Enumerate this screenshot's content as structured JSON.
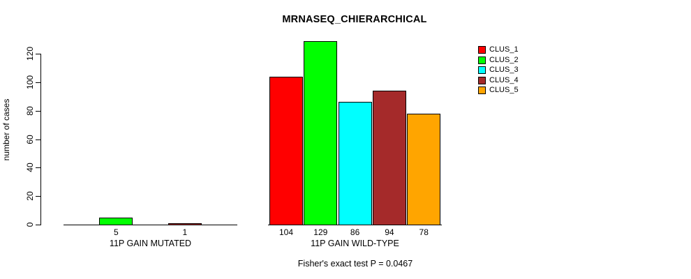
{
  "chart_data": {
    "type": "bar",
    "title": "MRNASEQ_CHIERARCHICAL",
    "ylabel": "number of cases",
    "xlabel": "",
    "ylim": [
      0,
      120
    ],
    "yticks": [
      0,
      20,
      40,
      60,
      80,
      100,
      120
    ],
    "grid": false,
    "legend_position": "topright",
    "background": "#FFFFFF",
    "axis_color": "#000000",
    "categories": [
      "11P GAIN MUTATED",
      "11P GAIN WILD-TYPE"
    ],
    "series": [
      {
        "name": "CLUS_1",
        "color": "#FF0000",
        "values": [
          0,
          104
        ]
      },
      {
        "name": "CLUS_2",
        "color": "#00FF00",
        "values": [
          5,
          129
        ]
      },
      {
        "name": "CLUS_3",
        "color": "#00FFFF",
        "values": [
          0,
          86
        ]
      },
      {
        "name": "CLUS_4",
        "color": "#A52A2A",
        "values": [
          1,
          94
        ]
      },
      {
        "name": "CLUS_5",
        "color": "#FFA500",
        "values": [
          0,
          78
        ]
      }
    ],
    "bar_value_labels": [
      [
        "",
        "5",
        "",
        "1",
        ""
      ],
      [
        "104",
        "129",
        "86",
        "94",
        "78"
      ]
    ],
    "annotation": "Fisher's exact test P = 0.0467"
  }
}
